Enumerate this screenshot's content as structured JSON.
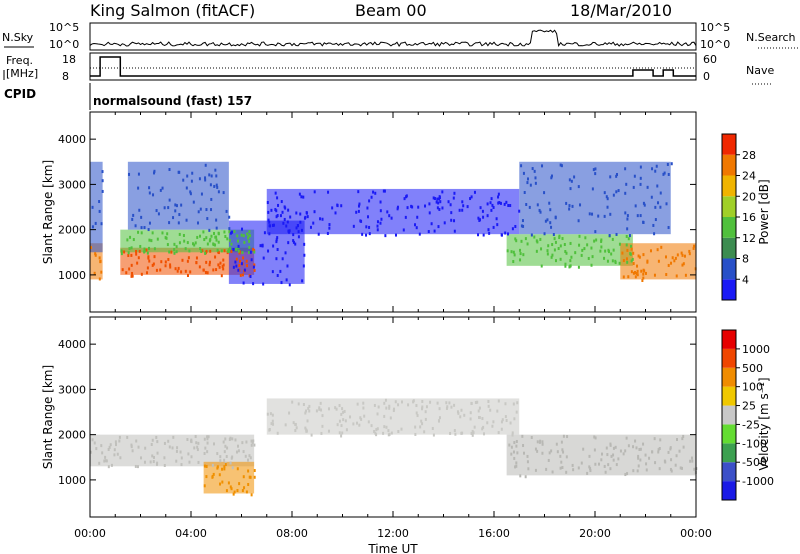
{
  "header": {
    "station": "King Salmon (fitACF)",
    "beam": "Beam 00",
    "date": "18/Mar/2010"
  },
  "top_strip": {
    "nsky_label": "N.Sky",
    "nsky_ticks": [
      "10^5",
      "10^0"
    ],
    "nsearch_label": "N.Search",
    "freq_label_1": "Freq.",
    "freq_label_2": "[MHz]",
    "freq_ticks": [
      "18",
      "8"
    ],
    "nave_ticks": [
      "60",
      "0"
    ],
    "nave_label": "Nave",
    "cpid_label": "CPID",
    "cpid_value": "normalsound (fast) 157"
  },
  "chart_data": [
    {
      "type": "heatmap",
      "name": "power",
      "ylabel": "Slant Range [km]",
      "ylim": [
        180,
        4600
      ],
      "yticks": [
        1000,
        2000,
        3000,
        4000
      ],
      "xlim_hours": [
        0,
        24
      ],
      "colorbar_label": "Power [dB]",
      "colorbar_ticks": [
        "4",
        "8",
        "12",
        "16",
        "20",
        "24",
        "28"
      ],
      "colorbar_colors": [
        "#1a1af5",
        "#2850c8",
        "#3c8c50",
        "#50c03c",
        "#a0d028",
        "#f0b400",
        "#f07800",
        "#f02800"
      ],
      "bands": [
        {
          "start_h": 0.0,
          "end_h": 0.5,
          "rmin": 900,
          "rmax": 1700,
          "color": "#f07800"
        },
        {
          "start_h": 0.0,
          "end_h": 0.5,
          "rmin": 1500,
          "rmax": 3500,
          "color": "#2850c8"
        },
        {
          "start_h": 1.2,
          "end_h": 6.5,
          "rmin": 1000,
          "rmax": 1600,
          "color": "#f05000"
        },
        {
          "start_h": 1.2,
          "end_h": 6.5,
          "rmin": 1500,
          "rmax": 2000,
          "color": "#50c03c"
        },
        {
          "start_h": 1.5,
          "end_h": 5.5,
          "rmin": 2000,
          "rmax": 3500,
          "color": "#2850c8"
        },
        {
          "start_h": 5.5,
          "end_h": 8.5,
          "rmin": 800,
          "rmax": 2200,
          "color": "#1a1af5"
        },
        {
          "start_h": 7.0,
          "end_h": 17.0,
          "rmin": 1900,
          "rmax": 2900,
          "color": "#1a1af5"
        },
        {
          "start_h": 16.5,
          "end_h": 21.5,
          "rmin": 1200,
          "rmax": 1900,
          "color": "#50c03c"
        },
        {
          "start_h": 17.0,
          "end_h": 23.0,
          "rmin": 1900,
          "rmax": 3500,
          "color": "#2850c8"
        },
        {
          "start_h": 21.0,
          "end_h": 24.0,
          "rmin": 900,
          "rmax": 1700,
          "color": "#f07800"
        }
      ]
    },
    {
      "type": "heatmap",
      "name": "velocity",
      "ylabel": "Slant Range [km]",
      "xlabel": "Time UT",
      "xticks": [
        "00:00",
        "04:00",
        "08:00",
        "12:00",
        "16:00",
        "20:00",
        "00:00"
      ],
      "ylim": [
        180,
        4600
      ],
      "yticks": [
        1000,
        2000,
        3000,
        4000
      ],
      "xlim_hours": [
        0,
        24
      ],
      "colorbar_label": "Velocity [m s⁻¹]",
      "colorbar_ticks": [
        "1000",
        "500",
        "100",
        "25",
        "-25",
        "-100",
        "-500",
        "-1000"
      ],
      "colorbar_colors": [
        "#1a1ae6",
        "#3c50c8",
        "#3ca050",
        "#64dc32",
        "#c8c8c8",
        "#f0c800",
        "#f08c00",
        "#f04600",
        "#e60000"
      ],
      "bands": [
        {
          "start_h": 0.0,
          "end_h": 6.5,
          "rmin": 1300,
          "rmax": 2000,
          "color": "#c0c0bc"
        },
        {
          "start_h": 7.0,
          "end_h": 17.0,
          "rmin": 2000,
          "rmax": 2800,
          "color": "#c8c8c4"
        },
        {
          "start_h": 16.5,
          "end_h": 24.0,
          "rmin": 1100,
          "rmax": 2000,
          "color": "#b8b8b4"
        },
        {
          "start_h": 4.5,
          "end_h": 6.5,
          "rmin": 700,
          "rmax": 1400,
          "color": "#f09000"
        }
      ]
    }
  ]
}
